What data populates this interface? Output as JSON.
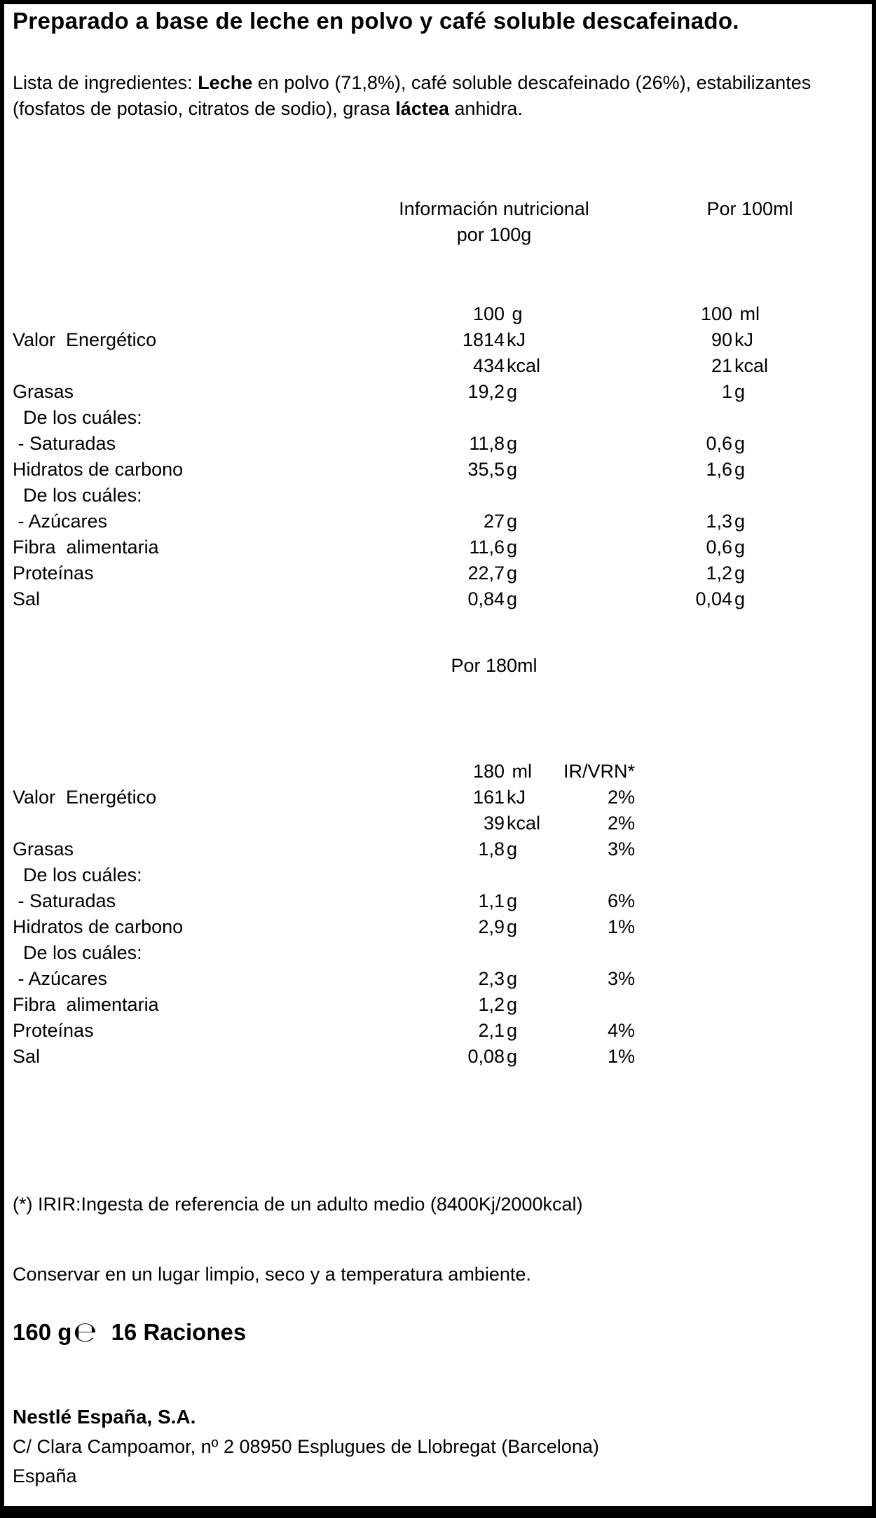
{
  "label": {
    "title": "Preparado a base de leche en polvo y café soluble descafeinado.",
    "ingredients_segments": [
      {
        "text": "Lista de ingredientes: ",
        "bold": false
      },
      {
        "text": "Leche",
        "bold": true
      },
      {
        "text": " en polvo (71,8%), café soluble descafeinado (26%), estabilizantes (fosfatos de potasio, citratos de sodio), grasa ",
        "bold": false
      },
      {
        "text": "láctea",
        "bold": true
      },
      {
        "text": " anhidra.",
        "bold": false
      }
    ],
    "table_100": {
      "header_line1": "Información nutricional",
      "header_line2": "por 100g",
      "col2_header": "Por 100ml",
      "rows": [
        {
          "lbl": "",
          "n1": "100",
          "u1": " g",
          "n2": "100",
          "u2": " ml"
        },
        {
          "lbl": "Valor  Energético",
          "n1": "1814",
          "u1": "kJ",
          "n2": "90",
          "u2": "kJ"
        },
        {
          "lbl": "",
          "n1": "434",
          "u1": "kcal",
          "n2": "21",
          "u2": "kcal"
        },
        {
          "lbl": "Grasas",
          "n1": "19,2",
          "u1": "g",
          "n2": "1",
          "u2": "g"
        },
        {
          "lbl": "  De los cuáles:",
          "n1": "",
          "u1": "",
          "n2": "",
          "u2": ""
        },
        {
          "lbl": " - Saturadas",
          "n1": "11,8",
          "u1": "g",
          "n2": "0,6",
          "u2": "g"
        },
        {
          "lbl": "Hidratos de carbono",
          "n1": "35,5",
          "u1": "g",
          "n2": "1,6",
          "u2": "g"
        },
        {
          "lbl": "  De los cuáles:",
          "n1": "",
          "u1": "",
          "n2": "",
          "u2": ""
        },
        {
          "lbl": " - Azúcares",
          "n1": "27",
          "u1": "g",
          "n2": "1,3",
          "u2": "g"
        },
        {
          "lbl": "Fibra  alimentaria",
          "n1": "11,6",
          "u1": "g",
          "n2": "0,6",
          "u2": "g"
        },
        {
          "lbl": "Proteínas",
          "n1": "22,7",
          "u1": "g",
          "n2": "1,2",
          "u2": "g"
        },
        {
          "lbl": "Sal",
          "n1": "0,84",
          "u1": "g",
          "n2": "0,04",
          "u2": "g"
        }
      ]
    },
    "table_180": {
      "header": "Por 180ml",
      "rows": [
        {
          "lbl": "",
          "n1": "180",
          "u1": " ml",
          "pct": "IR/VRN*"
        },
        {
          "lbl": "Valor  Energético",
          "n1": "161",
          "u1": "kJ",
          "pct": "2%"
        },
        {
          "lbl": "",
          "n1": "39",
          "u1": "kcal",
          "pct": "2%"
        },
        {
          "lbl": "Grasas",
          "n1": "1,8",
          "u1": "g",
          "pct": "3%"
        },
        {
          "lbl": "  De los cuáles:",
          "n1": "",
          "u1": "",
          "pct": ""
        },
        {
          "lbl": " - Saturadas",
          "n1": "1,1",
          "u1": "g",
          "pct": "6%"
        },
        {
          "lbl": "Hidratos de carbono",
          "n1": "2,9",
          "u1": "g",
          "pct": "1%"
        },
        {
          "lbl": "  De los cuáles:",
          "n1": "",
          "u1": "",
          "pct": ""
        },
        {
          "lbl": " - Azúcares",
          "n1": "2,3",
          "u1": "g",
          "pct": "3%"
        },
        {
          "lbl": "Fibra  alimentaria",
          "n1": "1,2",
          "u1": "g",
          "pct": ""
        },
        {
          "lbl": "Proteínas",
          "n1": "2,1",
          "u1": "g",
          "pct": "4%"
        },
        {
          "lbl": "Sal",
          "n1": "0,08",
          "u1": "g",
          "pct": "1%"
        }
      ]
    },
    "footnote": "(*) IRIR:Ingesta de referencia de un adulto medio (8400Kj/2000kcal)",
    "storage": "Conservar en un lugar limpio, seco y a temperatura ambiente.",
    "net_weight": "160 g",
    "estimated_sign": "℮",
    "servings": "16 Raciones",
    "manufacturer": "Nestlé España, S.A.",
    "address": "C/ Clara Campoamor, nº 2 08950 Esplugues de Llobregat (Barcelona)",
    "country": "España"
  }
}
